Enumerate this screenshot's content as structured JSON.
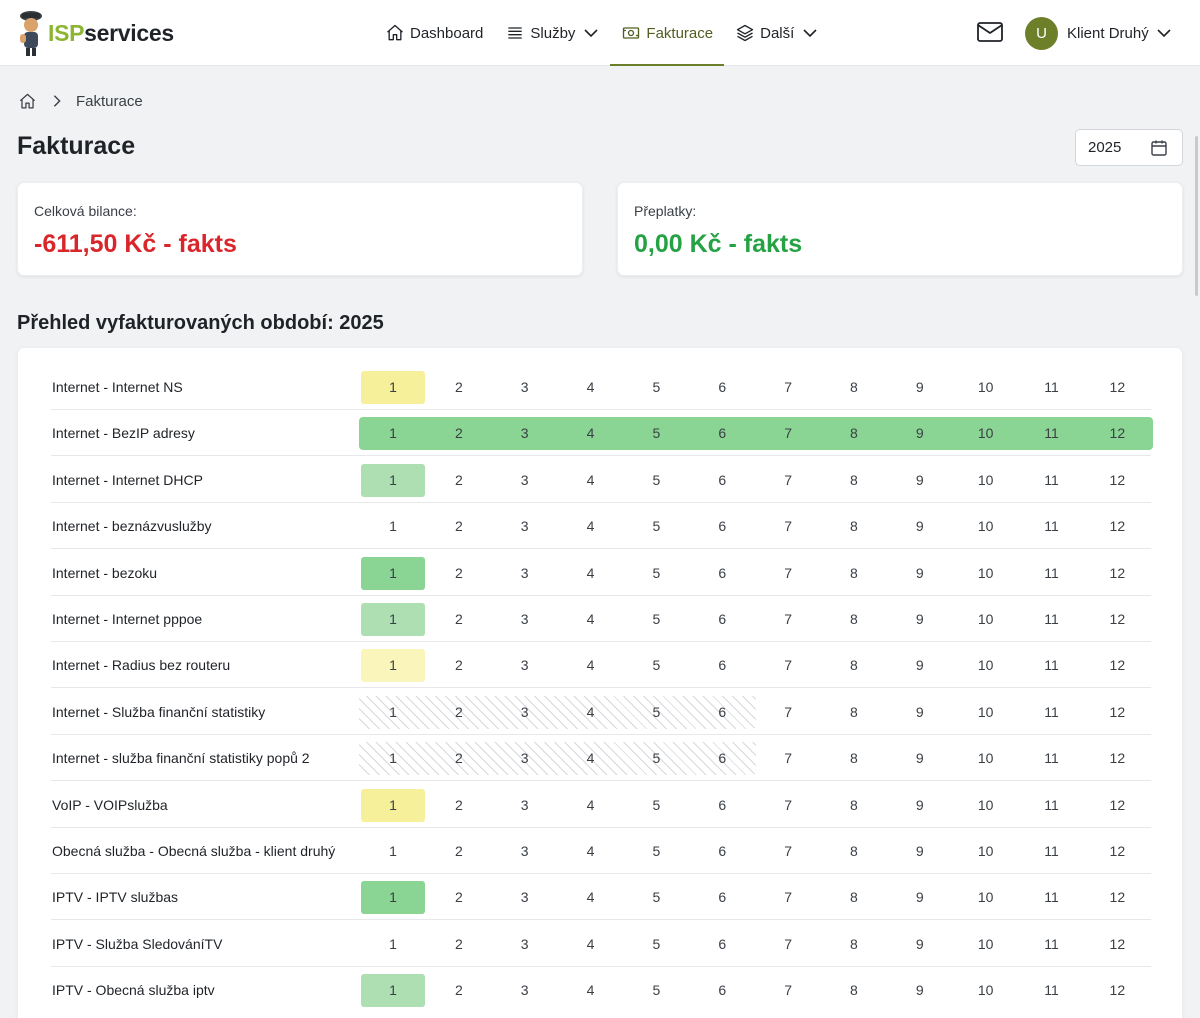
{
  "brand": {
    "isp": "ISP",
    "services": "services"
  },
  "nav": {
    "dashboard": "Dashboard",
    "sluzby": "Služby",
    "fakturace": "Fakturace",
    "dalsi": "Další"
  },
  "user": {
    "initial": "U",
    "name": "Klient Druhý"
  },
  "breadcrumb": {
    "current": "Fakturace"
  },
  "page": {
    "title": "Fakturace",
    "year": "2025"
  },
  "summary": {
    "balance_label": "Celková bilance:",
    "balance_value": "-611,50 Kč - fakts",
    "overpay_label": "Přeplatky:",
    "overpay_value": "0,00 Kč - fakts"
  },
  "section_title": "Přehled vyfakturovaných období: 2025",
  "months": [
    "1",
    "2",
    "3",
    "4",
    "5",
    "6",
    "7",
    "8",
    "9",
    "10",
    "11",
    "12"
  ],
  "status_colors": {
    "yellow": "#f7f09b",
    "lightyellow": "#f9f5bb",
    "green": "#8ad593",
    "lightgreen": "#addfb3",
    "hatch": "#d6d8db",
    "negative": "#d9262b",
    "positive": "#25a244",
    "accent": "#6b7f2b"
  },
  "services": [
    {
      "name": "Internet - Internet NS",
      "statuses": [
        "yellow",
        "",
        "",
        "",
        "",
        "",
        "",
        "",
        "",
        "",
        "",
        ""
      ]
    },
    {
      "name": "Internet - BezIP adresy",
      "statuses": [
        "green",
        "green",
        "green",
        "green",
        "green",
        "green",
        "green",
        "green",
        "green",
        "green",
        "green",
        "green"
      ]
    },
    {
      "name": "Internet - Internet DHCP",
      "statuses": [
        "lightgreen",
        "",
        "",
        "",
        "",
        "",
        "",
        "",
        "",
        "",
        "",
        ""
      ]
    },
    {
      "name": "Internet - beznázvuslužby",
      "statuses": [
        "",
        "",
        "",
        "",
        "",
        "",
        "",
        "",
        "",
        "",
        "",
        ""
      ]
    },
    {
      "name": "Internet - bezoku",
      "statuses": [
        "green",
        "",
        "",
        "",
        "",
        "",
        "",
        "",
        "",
        "",
        "",
        ""
      ]
    },
    {
      "name": "Internet - Internet pppoe",
      "statuses": [
        "lightgreen",
        "",
        "",
        "",
        "",
        "",
        "",
        "",
        "",
        "",
        "",
        ""
      ]
    },
    {
      "name": "Internet - Radius bez routeru",
      "statuses": [
        "lightyellow",
        "",
        "",
        "",
        "",
        "",
        "",
        "",
        "",
        "",
        "",
        ""
      ]
    },
    {
      "name": "Internet - Služba finanční statistiky",
      "statuses": [
        "hatch",
        "hatch",
        "hatch",
        "hatch",
        "hatch",
        "hatch",
        "",
        "",
        "",
        "",
        "",
        ""
      ]
    },
    {
      "name": "Internet - služba finanční statistiky popů 2",
      "statuses": [
        "hatch",
        "hatch",
        "hatch",
        "hatch",
        "hatch",
        "hatch",
        "",
        "",
        "",
        "",
        "",
        ""
      ]
    },
    {
      "name": "VoIP - VOIPslužba",
      "statuses": [
        "yellow",
        "",
        "",
        "",
        "",
        "",
        "",
        "",
        "",
        "",
        "",
        ""
      ]
    },
    {
      "name": "Obecná služba - Obecná služba - klient druhý",
      "statuses": [
        "",
        "",
        "",
        "",
        "",
        "",
        "",
        "",
        "",
        "",
        "",
        ""
      ]
    },
    {
      "name": "IPTV - IPTV službas",
      "statuses": [
        "green",
        "",
        "",
        "",
        "",
        "",
        "",
        "",
        "",
        "",
        "",
        ""
      ]
    },
    {
      "name": "IPTV - Služba SledováníTV",
      "statuses": [
        "",
        "",
        "",
        "",
        "",
        "",
        "",
        "",
        "",
        "",
        "",
        ""
      ]
    },
    {
      "name": "IPTV - Obecná služba iptv",
      "statuses": [
        "lightgreen",
        "",
        "",
        "",
        "",
        "",
        "",
        "",
        "",
        "",
        "",
        ""
      ]
    }
  ]
}
